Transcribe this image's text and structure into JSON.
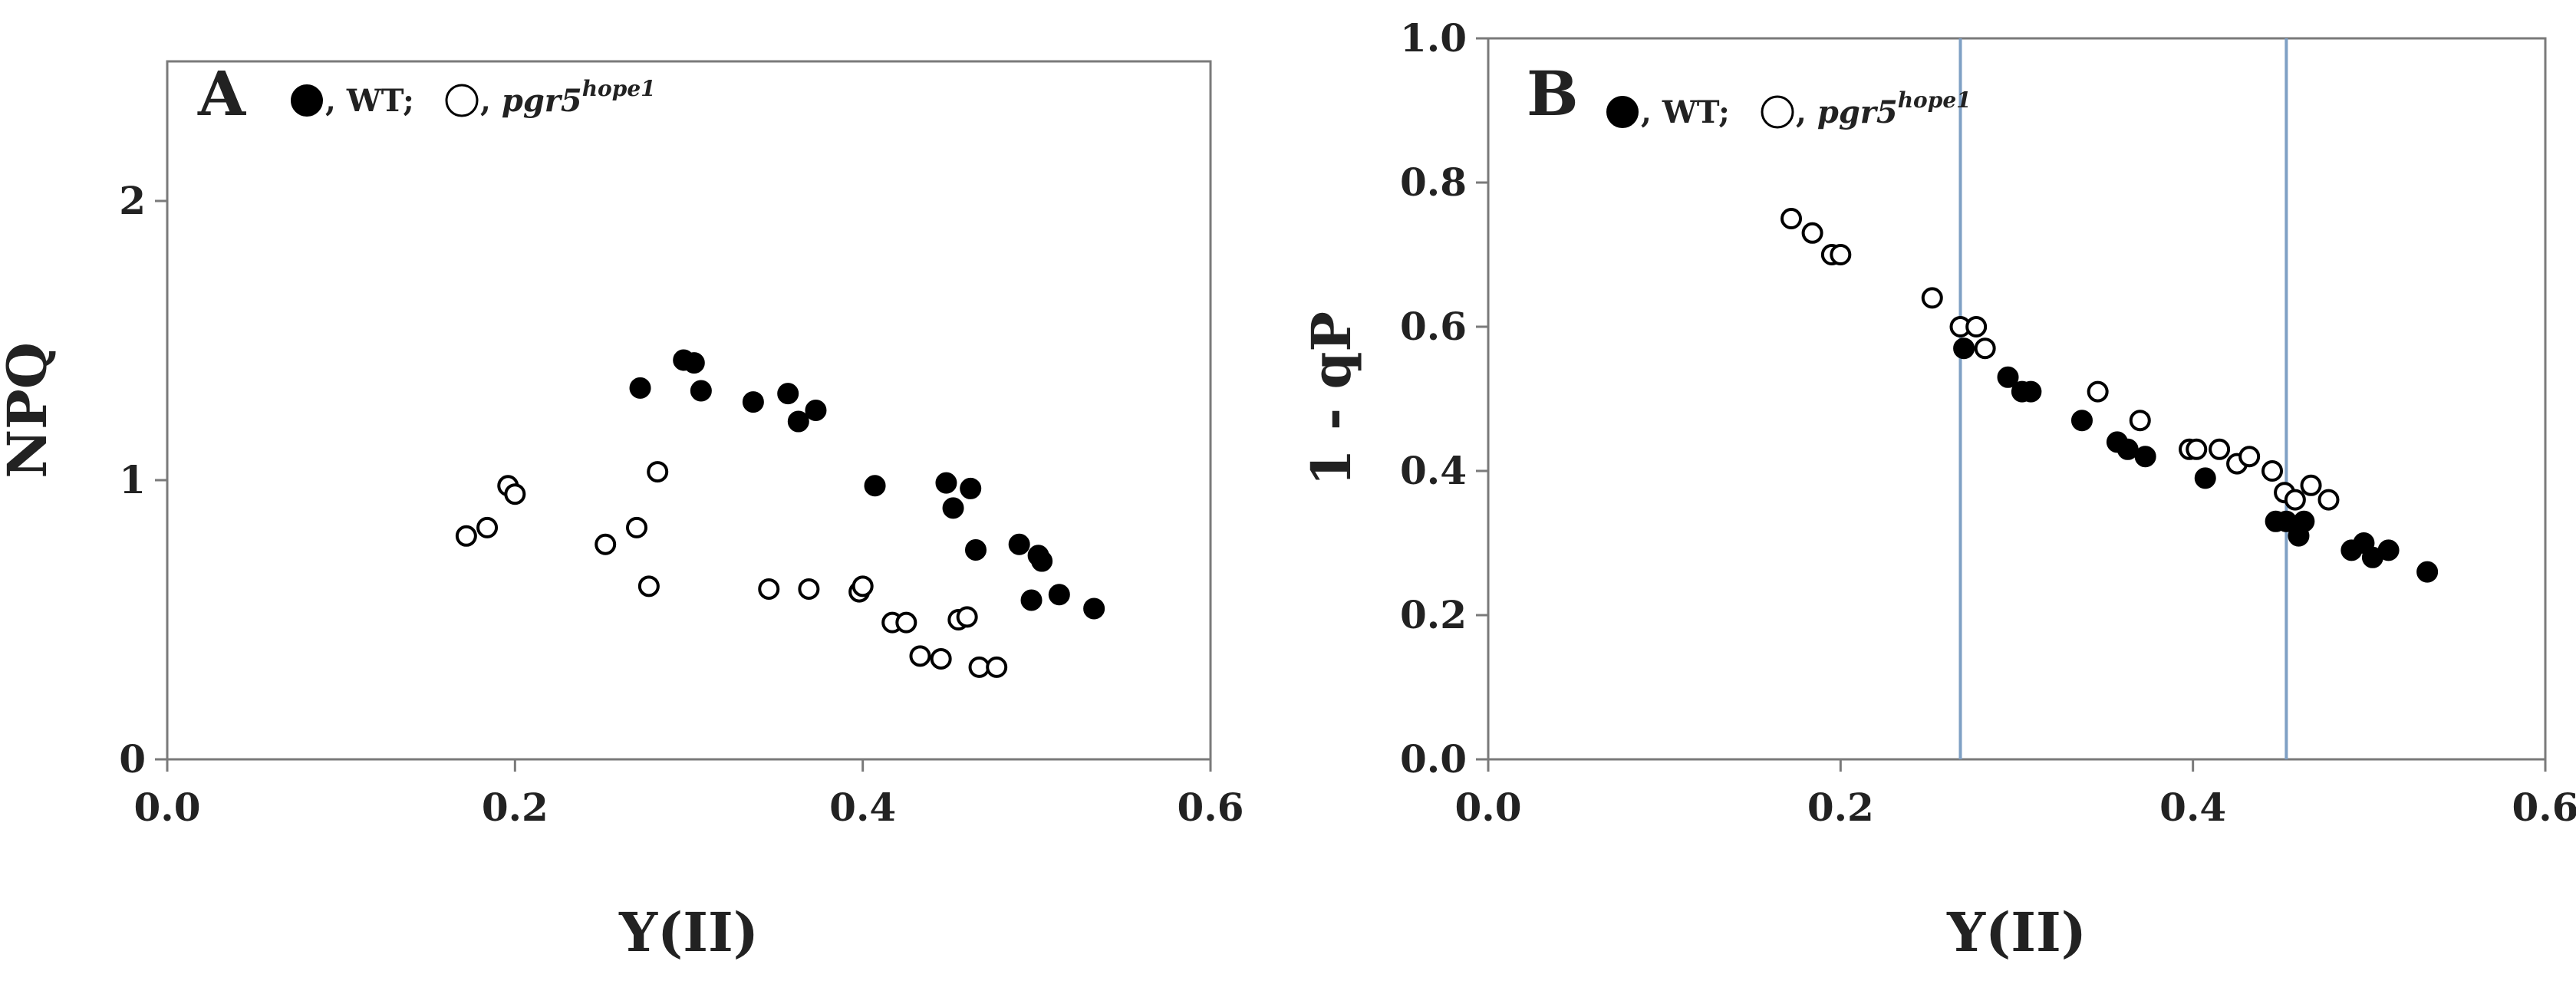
{
  "chart_data": [
    {
      "type": "scatter",
      "panel_label": "A",
      "xlabel": "Y(II)",
      "ylabel": "NPQ",
      "xlim": [
        0,
        0.6
      ],
      "ylim": [
        0,
        2.5
      ],
      "x_ticks": [
        0,
        0.2,
        0.4,
        0.6
      ],
      "x_tick_labels": [
        "0.0",
        "0.2",
        "0.4",
        "0.6"
      ],
      "y_ticks": [
        0,
        1,
        2
      ],
      "y_tick_labels": [
        "0",
        "1",
        "2"
      ],
      "legend": {
        "placement": "top-left",
        "wt_label": ", WT;",
        "mut_prefix": ", ",
        "mut_italic": "pgr5",
        "mut_sup": "hope1"
      },
      "series": [
        {
          "name": "WT",
          "marker": "filled",
          "points": [
            [
              0.272,
              1.33
            ],
            [
              0.297,
              1.43
            ],
            [
              0.303,
              1.42
            ],
            [
              0.307,
              1.32
            ],
            [
              0.337,
              1.28
            ],
            [
              0.357,
              1.31
            ],
            [
              0.363,
              1.21
            ],
            [
              0.373,
              1.25
            ],
            [
              0.407,
              0.98
            ],
            [
              0.448,
              0.99
            ],
            [
              0.452,
              0.9
            ],
            [
              0.462,
              0.97
            ],
            [
              0.465,
              0.75
            ],
            [
              0.49,
              0.77
            ],
            [
              0.497,
              0.57
            ],
            [
              0.501,
              0.73
            ],
            [
              0.503,
              0.71
            ],
            [
              0.513,
              0.59
            ],
            [
              0.533,
              0.54
            ]
          ]
        },
        {
          "name": "pgr5hope1",
          "marker": "open",
          "points": [
            [
              0.172,
              0.8
            ],
            [
              0.184,
              0.83
            ],
            [
              0.196,
              0.98
            ],
            [
              0.2,
              0.95
            ],
            [
              0.252,
              0.77
            ],
            [
              0.27,
              0.83
            ],
            [
              0.277,
              0.62
            ],
            [
              0.282,
              1.03
            ],
            [
              0.346,
              0.61
            ],
            [
              0.369,
              0.61
            ],
            [
              0.398,
              0.6
            ],
            [
              0.4,
              0.62
            ],
            [
              0.417,
              0.49
            ],
            [
              0.425,
              0.49
            ],
            [
              0.433,
              0.37
            ],
            [
              0.445,
              0.36
            ],
            [
              0.455,
              0.5
            ],
            [
              0.46,
              0.51
            ],
            [
              0.467,
              0.33
            ],
            [
              0.477,
              0.33
            ]
          ]
        }
      ]
    },
    {
      "type": "scatter",
      "panel_label": "B",
      "xlabel": "Y(II)",
      "ylabel": "1 - qP",
      "xlim": [
        0,
        0.6
      ],
      "ylim": [
        0,
        1.0
      ],
      "x_ticks": [
        0,
        0.2,
        0.4,
        0.6
      ],
      "x_tick_labels": [
        "0.0",
        "0.2",
        "0.4",
        "0.6"
      ],
      "y_ticks": [
        0,
        0.2,
        0.4,
        0.6,
        0.8,
        1.0
      ],
      "y_tick_labels": [
        "0.0",
        "0.2",
        "0.4",
        "0.6",
        "0.8",
        "1.0"
      ],
      "vertical_lines_x": [
        0.268,
        0.453
      ],
      "legend": {
        "placement": "top-left",
        "wt_label": ", WT;",
        "mut_prefix": ", ",
        "mut_italic": "pgr5",
        "mut_sup": "hope1"
      },
      "series": [
        {
          "name": "WT",
          "marker": "filled",
          "points": [
            [
              0.27,
              0.57
            ],
            [
              0.295,
              0.53
            ],
            [
              0.303,
              0.51
            ],
            [
              0.308,
              0.51
            ],
            [
              0.337,
              0.47
            ],
            [
              0.357,
              0.44
            ],
            [
              0.363,
              0.43
            ],
            [
              0.373,
              0.42
            ],
            [
              0.407,
              0.39
            ],
            [
              0.447,
              0.33
            ],
            [
              0.453,
              0.33
            ],
            [
              0.46,
              0.31
            ],
            [
              0.463,
              0.33
            ],
            [
              0.49,
              0.29
            ],
            [
              0.497,
              0.3
            ],
            [
              0.502,
              0.28
            ],
            [
              0.511,
              0.29
            ],
            [
              0.533,
              0.26
            ]
          ]
        },
        {
          "name": "pgr5hope1",
          "marker": "open",
          "points": [
            [
              0.172,
              0.75
            ],
            [
              0.184,
              0.73
            ],
            [
              0.195,
              0.7
            ],
            [
              0.2,
              0.7
            ],
            [
              0.252,
              0.64
            ],
            [
              0.268,
              0.6
            ],
            [
              0.277,
              0.6
            ],
            [
              0.282,
              0.57
            ],
            [
              0.346,
              0.51
            ],
            [
              0.37,
              0.47
            ],
            [
              0.398,
              0.43
            ],
            [
              0.402,
              0.43
            ],
            [
              0.415,
              0.43
            ],
            [
              0.425,
              0.41
            ],
            [
              0.432,
              0.42
            ],
            [
              0.445,
              0.4
            ],
            [
              0.452,
              0.37
            ],
            [
              0.458,
              0.36
            ],
            [
              0.467,
              0.38
            ],
            [
              0.477,
              0.36
            ]
          ]
        }
      ]
    }
  ]
}
